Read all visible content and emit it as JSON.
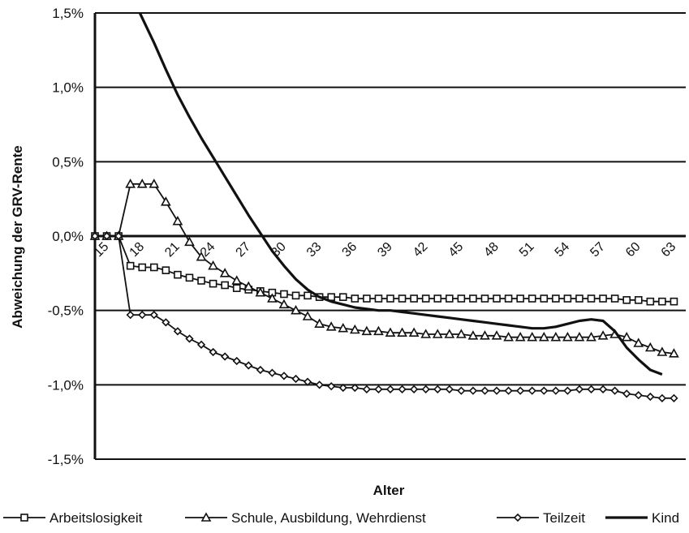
{
  "chart_data": {
    "type": "line",
    "title": "",
    "xlabel": "Alter",
    "ylabel": "Abweichung der GRV-Rente",
    "ylim": [
      -0.015,
      0.015
    ],
    "xlim": [
      15,
      65
    ],
    "y_ticks": [
      "1,5%",
      "1,0%",
      "0,5%",
      "0,0%",
      "-0,5%",
      "-1,0%",
      "-1,5%"
    ],
    "y_tick_values": [
      0.015,
      0.01,
      0.005,
      0.0,
      -0.005,
      -0.01,
      -0.015
    ],
    "x_ticks": [
      "15",
      "18",
      "21",
      "24",
      "27",
      "30",
      "33",
      "36",
      "39",
      "42",
      "45",
      "48",
      "51",
      "54",
      "57",
      "60",
      "63"
    ],
    "x_tick_values": [
      15,
      18,
      21,
      24,
      27,
      30,
      33,
      36,
      39,
      42,
      45,
      48,
      51,
      54,
      57,
      60,
      63
    ],
    "grid": "horizontal",
    "legend_position": "bottom",
    "series": [
      {
        "name": "Arbeitslosigkeit",
        "marker": "square",
        "x": [
          15,
          16,
          17,
          18,
          19,
          20,
          21,
          22,
          23,
          24,
          25,
          26,
          27,
          28,
          29,
          30,
          31,
          32,
          33,
          34,
          35,
          36,
          37,
          38,
          39,
          40,
          41,
          42,
          43,
          44,
          45,
          46,
          47,
          48,
          49,
          50,
          51,
          52,
          53,
          54,
          55,
          56,
          57,
          58,
          59,
          60,
          61,
          62,
          63,
          64
        ],
        "values": [
          0.0,
          0.0,
          0.0,
          -0.002,
          -0.0021,
          -0.0021,
          -0.0023,
          -0.0026,
          -0.0028,
          -0.003,
          -0.0032,
          -0.0033,
          -0.0035,
          -0.0036,
          -0.0037,
          -0.0038,
          -0.0039,
          -0.004,
          -0.004,
          -0.0041,
          -0.0041,
          -0.0041,
          -0.0042,
          -0.0042,
          -0.0042,
          -0.0042,
          -0.0042,
          -0.0042,
          -0.0042,
          -0.0042,
          -0.0042,
          -0.0042,
          -0.0042,
          -0.0042,
          -0.0042,
          -0.0042,
          -0.0042,
          -0.0042,
          -0.0042,
          -0.0042,
          -0.0042,
          -0.0042,
          -0.0042,
          -0.0042,
          -0.0042,
          -0.0043,
          -0.0043,
          -0.0044,
          -0.0044,
          -0.0044
        ]
      },
      {
        "name": "Schule, Ausbildung, Wehrdienst",
        "marker": "triangle",
        "x": [
          15,
          16,
          17,
          18,
          19,
          20,
          21,
          22,
          23,
          24,
          25,
          26,
          27,
          28,
          29,
          30,
          31,
          32,
          33,
          34,
          35,
          36,
          37,
          38,
          39,
          40,
          41,
          42,
          43,
          44,
          45,
          46,
          47,
          48,
          49,
          50,
          51,
          52,
          53,
          54,
          55,
          56,
          57,
          58,
          59,
          60,
          61,
          62,
          63,
          64
        ],
        "values": [
          0.0,
          0.0,
          0.0,
          0.0035,
          0.0035,
          0.0035,
          0.0023,
          0.001,
          -0.0004,
          -0.0014,
          -0.002,
          -0.0025,
          -0.003,
          -0.0034,
          -0.0038,
          -0.0042,
          -0.0046,
          -0.005,
          -0.0054,
          -0.0059,
          -0.0061,
          -0.0062,
          -0.0063,
          -0.0064,
          -0.0064,
          -0.0065,
          -0.0065,
          -0.0065,
          -0.0066,
          -0.0066,
          -0.0066,
          -0.0066,
          -0.0067,
          -0.0067,
          -0.0067,
          -0.0068,
          -0.0068,
          -0.0068,
          -0.0068,
          -0.0068,
          -0.0068,
          -0.0068,
          -0.0068,
          -0.0067,
          -0.0066,
          -0.0068,
          -0.0072,
          -0.0075,
          -0.0078,
          -0.0079
        ]
      },
      {
        "name": "Teilzeit",
        "marker": "diamond",
        "x": [
          15,
          16,
          17,
          18,
          19,
          20,
          21,
          22,
          23,
          24,
          25,
          26,
          27,
          28,
          29,
          30,
          31,
          32,
          33,
          34,
          35,
          36,
          37,
          38,
          39,
          40,
          41,
          42,
          43,
          44,
          45,
          46,
          47,
          48,
          49,
          50,
          51,
          52,
          53,
          54,
          55,
          56,
          57,
          58,
          59,
          60,
          61,
          62,
          63,
          64
        ],
        "values": [
          0.0,
          0.0,
          0.0,
          -0.0053,
          -0.0053,
          -0.0053,
          -0.0058,
          -0.0064,
          -0.0069,
          -0.0073,
          -0.0078,
          -0.0081,
          -0.0084,
          -0.0087,
          -0.009,
          -0.0092,
          -0.0094,
          -0.0096,
          -0.0098,
          -0.01,
          -0.0101,
          -0.0102,
          -0.0102,
          -0.0103,
          -0.0103,
          -0.0103,
          -0.0103,
          -0.0103,
          -0.0103,
          -0.0103,
          -0.0103,
          -0.0104,
          -0.0104,
          -0.0104,
          -0.0104,
          -0.0104,
          -0.0104,
          -0.0104,
          -0.0104,
          -0.0104,
          -0.0104,
          -0.0103,
          -0.0103,
          -0.0103,
          -0.0104,
          -0.0106,
          -0.0107,
          -0.0108,
          -0.0109,
          -0.0109
        ]
      },
      {
        "name": "Kind",
        "marker": "none",
        "x": [
          18.8,
          20,
          21,
          22,
          23,
          24,
          25,
          26,
          27,
          28,
          29,
          30,
          31,
          32,
          33,
          34,
          35,
          36,
          37,
          38,
          39,
          40,
          41,
          42,
          43,
          44,
          45,
          46,
          47,
          48,
          49,
          50,
          51,
          52,
          53,
          54,
          55,
          56,
          57,
          58,
          59,
          60,
          61,
          62,
          63
        ],
        "values": [
          0.015,
          0.013,
          0.0112,
          0.0095,
          0.008,
          0.0066,
          0.0053,
          0.004,
          0.0027,
          0.0014,
          0.0002,
          -0.001,
          -0.002,
          -0.0029,
          -0.0036,
          -0.0041,
          -0.0044,
          -0.0046,
          -0.0048,
          -0.0049,
          -0.005,
          -0.005,
          -0.0051,
          -0.0052,
          -0.0053,
          -0.0054,
          -0.0055,
          -0.0056,
          -0.0057,
          -0.0058,
          -0.0059,
          -0.006,
          -0.0061,
          -0.0062,
          -0.0062,
          -0.0061,
          -0.0059,
          -0.0057,
          -0.0056,
          -0.0057,
          -0.0064,
          -0.0075,
          -0.0083,
          -0.009,
          -0.0093
        ]
      }
    ]
  }
}
